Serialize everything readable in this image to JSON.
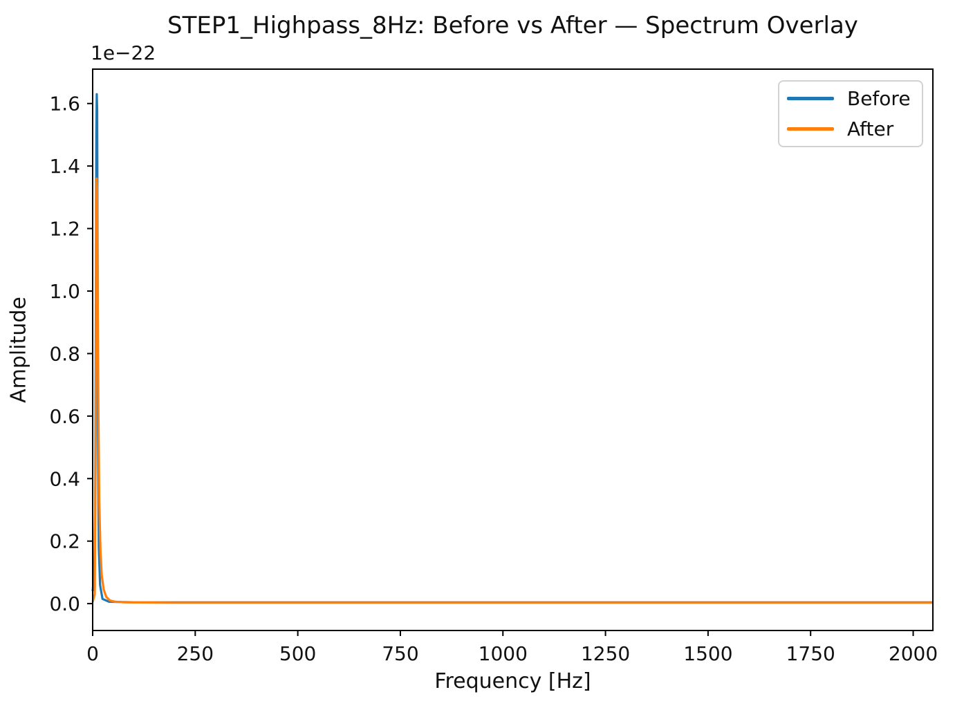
{
  "chart_data": {
    "type": "line",
    "title": "STEP1_Highpass_8Hz: Before vs After — Spectrum Overlay",
    "xlabel": "Frequency [Hz]",
    "ylabel": "Amplitude",
    "y_offset_text": "1e−22",
    "amplitude_unit_multiplier": "1e-22",
    "xlim": [
      0,
      2048
    ],
    "ylim": [
      -0.086,
      1.71
    ],
    "x_ticks": [
      0,
      250,
      500,
      750,
      1000,
      1250,
      1500,
      1750,
      2000
    ],
    "y_ticks": [
      0.0,
      0.2,
      0.4,
      0.6,
      0.8,
      1.0,
      1.2,
      1.4,
      1.6
    ],
    "grid": false,
    "axes_color": "#000000",
    "background": "#ffffff",
    "legend": {
      "position": "upper-right",
      "entries": [
        {
          "label": "Before",
          "color": "#1f77b4"
        },
        {
          "label": "After",
          "color": "#ff7f0e"
        }
      ]
    },
    "series": [
      {
        "name": "Before",
        "color": "#1f77b4",
        "peak": {
          "frequency_hz": 10,
          "amplitude_1e22": 1.63
        },
        "points_hz_amp1e22": [
          [
            0,
            0.04
          ],
          [
            4,
            0.1
          ],
          [
            6,
            0.3
          ],
          [
            8,
            1.0
          ],
          [
            9,
            1.5
          ],
          [
            10,
            1.63
          ],
          [
            11,
            1.58
          ],
          [
            12,
            1.15
          ],
          [
            13,
            0.55
          ],
          [
            15,
            0.18
          ],
          [
            18,
            0.06
          ],
          [
            24,
            0.015
          ],
          [
            40,
            0.006
          ],
          [
            100,
            0.004
          ],
          [
            500,
            0.004
          ],
          [
            1000,
            0.004
          ],
          [
            1500,
            0.004
          ],
          [
            2048,
            0.004
          ]
        ]
      },
      {
        "name": "After",
        "color": "#ff7f0e",
        "peak": {
          "frequency_hz": 10,
          "amplitude_1e22": 1.36
        },
        "points_hz_amp1e22": [
          [
            0,
            0.005
          ],
          [
            5,
            0.03
          ],
          [
            7,
            0.45
          ],
          [
            9,
            1.2
          ],
          [
            10,
            1.36
          ],
          [
            11,
            1.33
          ],
          [
            12,
            1.05
          ],
          [
            14,
            0.62
          ],
          [
            16,
            0.33
          ],
          [
            19,
            0.17
          ],
          [
            22,
            0.09
          ],
          [
            27,
            0.045
          ],
          [
            33,
            0.022
          ],
          [
            42,
            0.01
          ],
          [
            55,
            0.006
          ],
          [
            80,
            0.004
          ],
          [
            200,
            0.003
          ],
          [
            500,
            0.003
          ],
          [
            1000,
            0.003
          ],
          [
            1500,
            0.003
          ],
          [
            2048,
            0.003
          ]
        ]
      }
    ]
  }
}
